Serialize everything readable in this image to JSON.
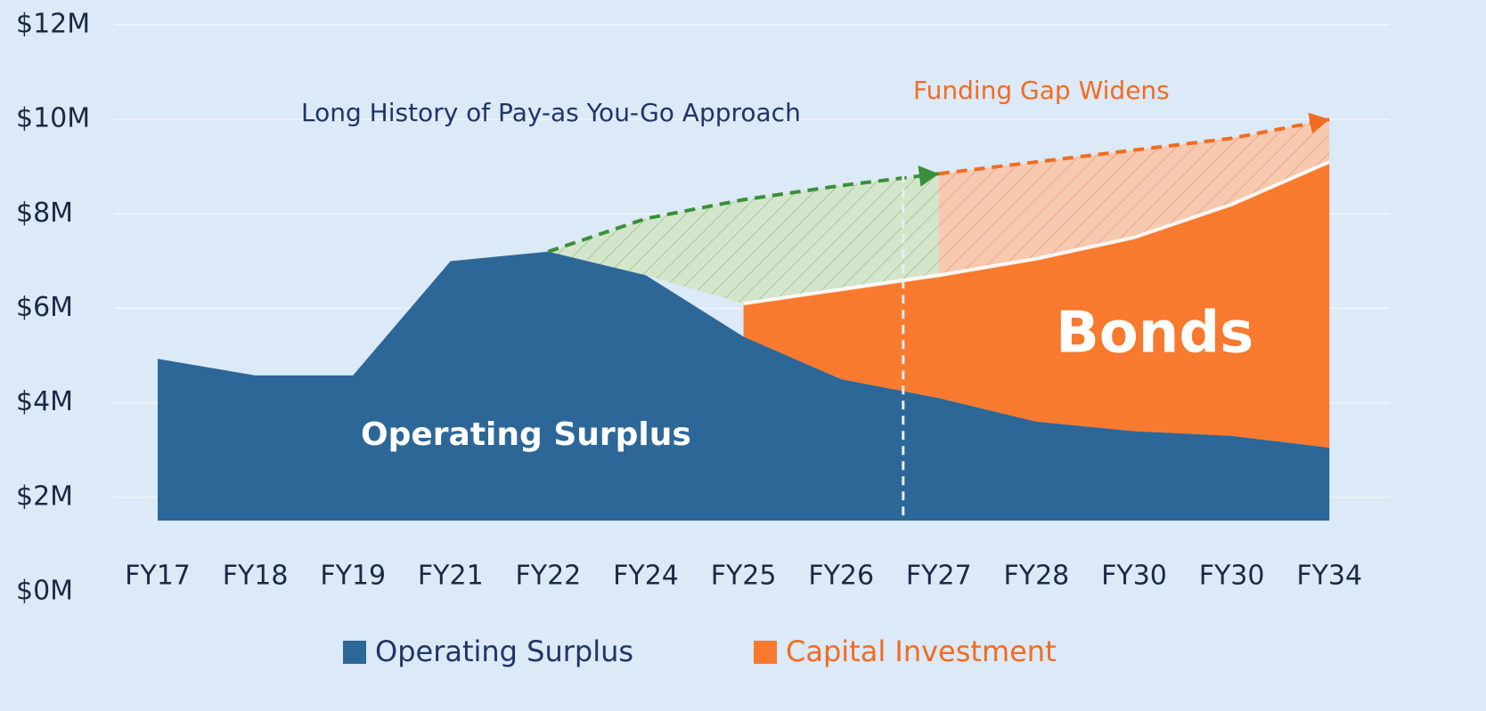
{
  "chart_data": {
    "type": "stacked_area",
    "categories": [
      "FY17",
      "FY18",
      "FY19",
      "FY21",
      "FY22",
      "FY24",
      "FY25",
      "FY26",
      "FY27",
      "FY28",
      "FY30",
      "FY30",
      "FY34"
    ],
    "series": [
      {
        "name": "Operating Surplus",
        "color": "#2c6797",
        "values": [
          4.93,
          4.58,
          4.58,
          7.0,
          7.2,
          6.7,
          5.4,
          4.5,
          4.1,
          3.6,
          3.4,
          3.3,
          3.05
        ]
      },
      {
        "name": "Capital Investment",
        "color": "#f77a2f",
        "values": [
          null,
          null,
          null,
          null,
          null,
          null,
          0.7,
          1.9,
          2.6,
          3.45,
          4.1,
          4.9,
          6.05
        ]
      }
    ],
    "projections": [
      {
        "color": "#3a8f3a",
        "values": [
          null,
          null,
          null,
          null,
          7.2,
          7.9,
          8.3,
          8.6,
          8.85,
          null,
          null,
          null,
          null
        ]
      },
      {
        "color": "#f26b21",
        "values": [
          null,
          null,
          null,
          null,
          null,
          null,
          null,
          null,
          8.85,
          9.1,
          9.35,
          9.6,
          10.0
        ]
      }
    ],
    "annotations": [
      "Long History of Pay-as You-Go Approach",
      "Funding Gap Widens",
      "Bonds",
      "Operating Surplus"
    ],
    "ylim": [
      0,
      12
    ],
    "yticks": [
      {
        "value": 0,
        "label": "$0M"
      },
      {
        "value": 2,
        "label": "$2M"
      },
      {
        "value": 4,
        "label": "$4M"
      },
      {
        "value": 6,
        "label": "$6M"
      },
      {
        "value": 8,
        "label": "$8M"
      },
      {
        "value": 10,
        "label": "$10M"
      },
      {
        "value": 12,
        "label": "$12M"
      }
    ],
    "grid": true,
    "legend": "bottom"
  }
}
